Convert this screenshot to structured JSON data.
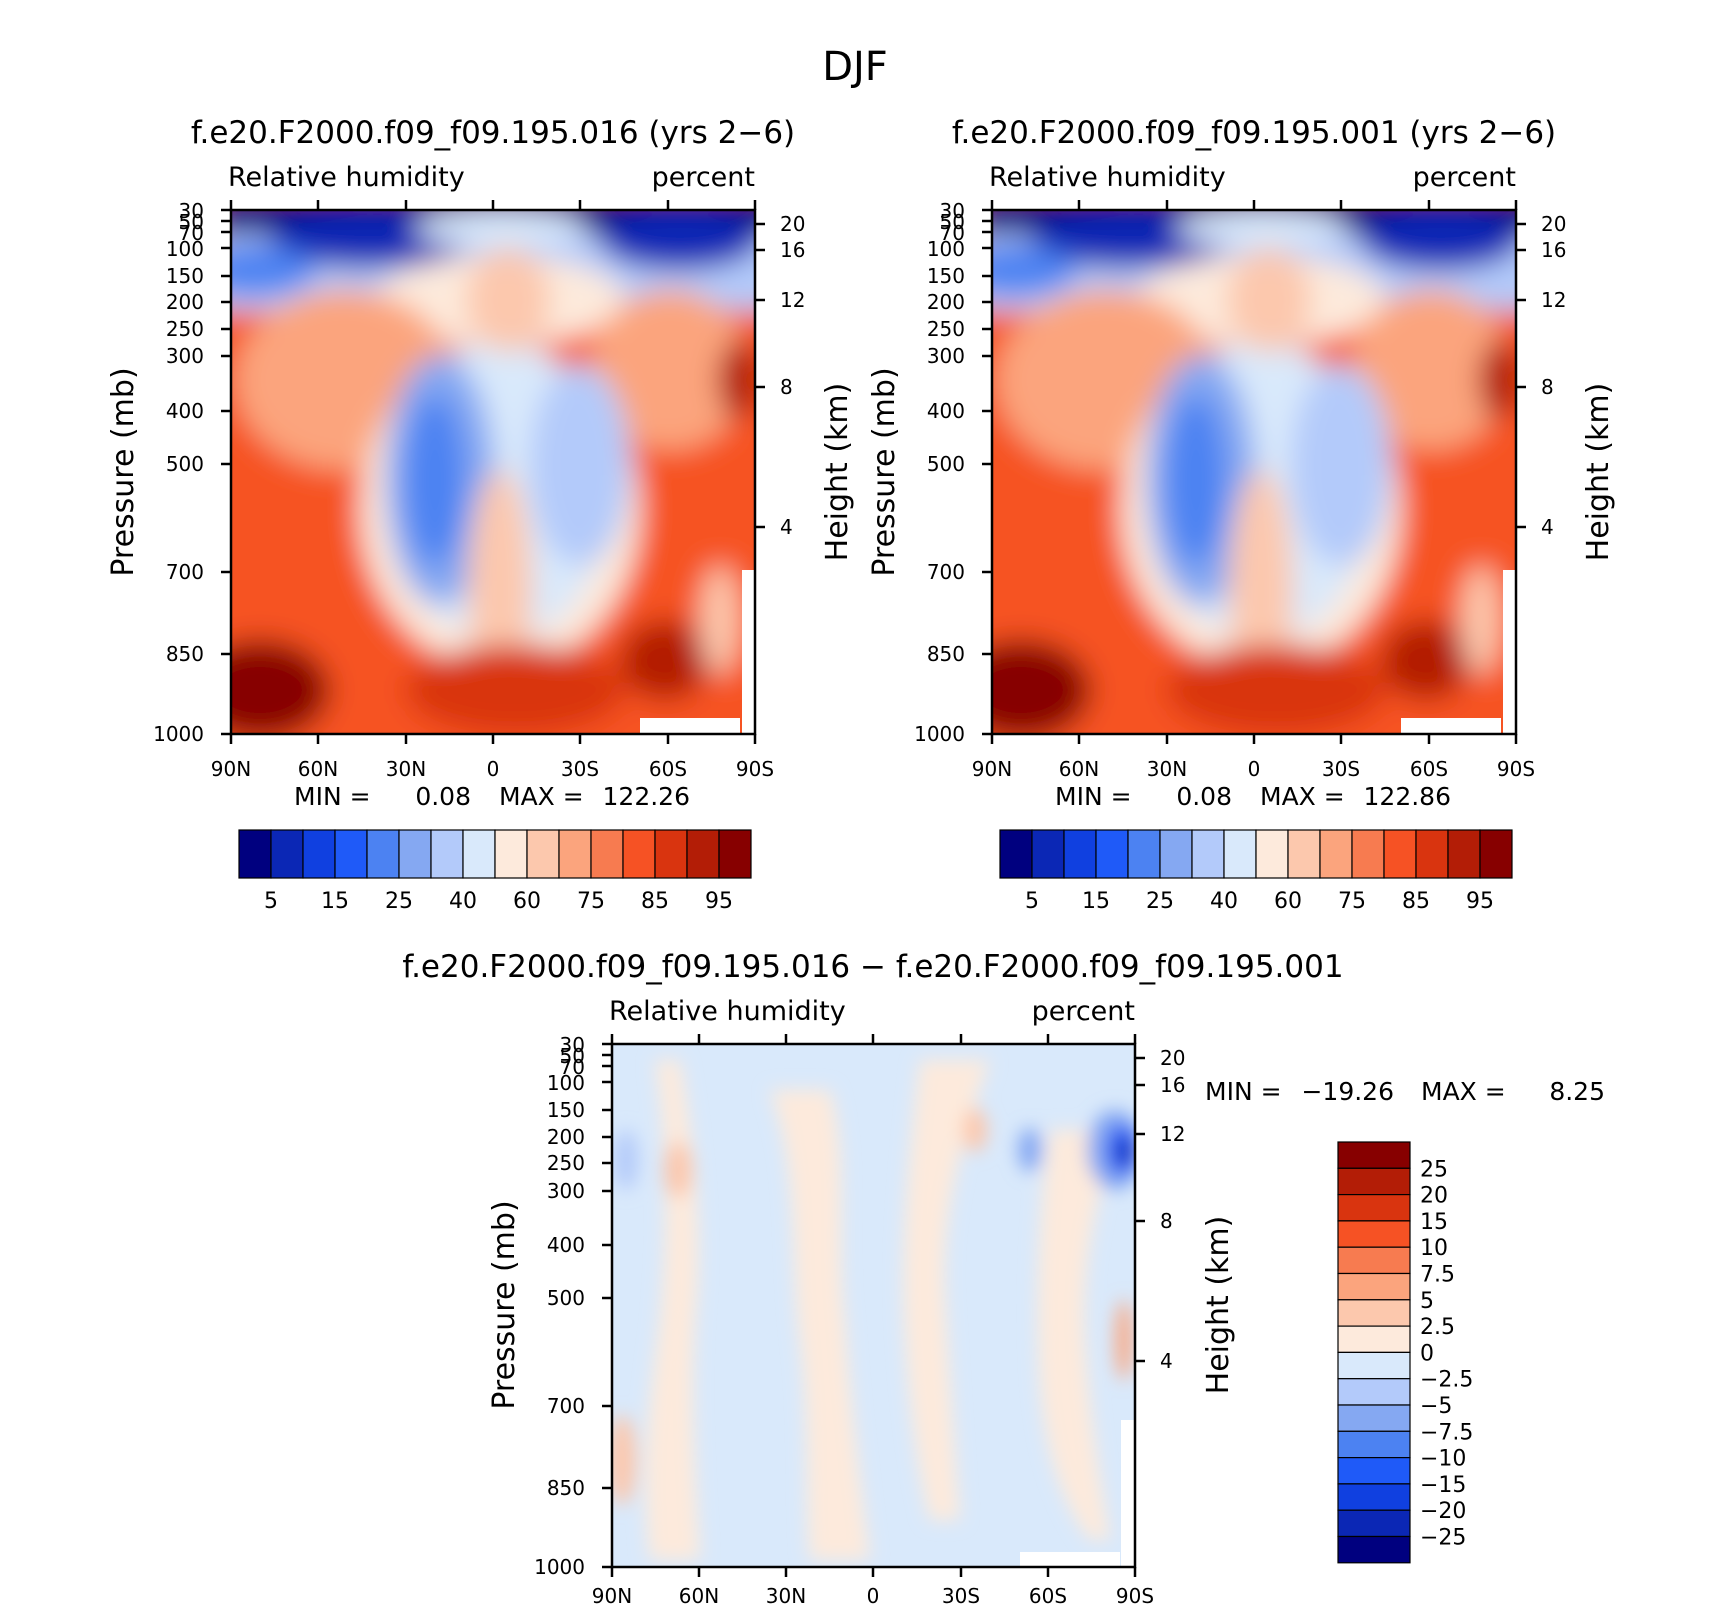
{
  "figure_title": "DJF",
  "panels": [
    {
      "id": "top-left",
      "case_title": "f.e20.F2000.f09_f09.195.016 (yrs 2−6)",
      "left_label": "Relative humidity",
      "right_label": "percent",
      "stats": {
        "min_label": "MIN =",
        "min": "0.08",
        "max_label": "MAX =",
        "max": "122.26"
      }
    },
    {
      "id": "top-right",
      "case_title": "f.e20.F2000.f09_f09.195.001 (yrs 2−6)",
      "left_label": "Relative humidity",
      "right_label": "percent",
      "stats": {
        "min_label": "MIN =",
        "min": "0.08",
        "max_label": "MAX =",
        "max": "122.86"
      }
    },
    {
      "id": "bottom-diff",
      "case_title": "f.e20.F2000.f09_f09.195.016 − f.e20.F2000.f09_f09.195.001",
      "left_label": "Relative humidity",
      "right_label": "percent",
      "stats": {
        "min_label": "MIN =",
        "min": "−19.26",
        "max_label": "MAX =",
        "max": "8.25"
      }
    }
  ],
  "chart_data": [
    {
      "type": "heatmap",
      "title": "f.e20.F2000.f09_f09.195.016 (yrs 2−6)",
      "variable": "Relative humidity",
      "units": "percent",
      "xlabel": "",
      "ylabel": "Pressure (mb)",
      "y2label": "Height (km)",
      "x_ticks": [
        "90N",
        "60N",
        "30N",
        "0",
        "30S",
        "60S",
        "90S"
      ],
      "y_ticks": [
        "30",
        "50",
        "70",
        "100",
        "150",
        "200",
        "250",
        "300",
        "400",
        "500",
        "700",
        "850",
        "1000"
      ],
      "y2_ticks": [
        "20",
        "16",
        "12",
        "8",
        "4"
      ],
      "y_scale": "log",
      "x_range": [
        90,
        -90
      ],
      "y_range": [
        30,
        1000
      ],
      "colorbar_labels": [
        "5",
        "15",
        "25",
        "40",
        "60",
        "75",
        "85",
        "95"
      ],
      "colors": [
        "#00007f",
        "#0b27b5",
        "#1040e0",
        "#1f5af8",
        "#4c82f2",
        "#85a8f2",
        "#b3cafa",
        "#d9e9fb",
        "#fdeadc",
        "#fcc8ad",
        "#fba47d",
        "#f77b50",
        "#f65224",
        "#d9340f",
        "#b31d06",
        "#870000"
      ],
      "min": 0.08,
      "max": 122.26
    },
    {
      "type": "heatmap",
      "title": "f.e20.F2000.f09_f09.195.001 (yrs 2−6)",
      "variable": "Relative humidity",
      "units": "percent",
      "xlabel": "",
      "ylabel": "Pressure (mb)",
      "y2label": "Height (km)",
      "x_ticks": [
        "90N",
        "60N",
        "30N",
        "0",
        "30S",
        "60S",
        "90S"
      ],
      "y_ticks": [
        "30",
        "50",
        "70",
        "100",
        "150",
        "200",
        "250",
        "300",
        "400",
        "500",
        "700",
        "850",
        "1000"
      ],
      "y2_ticks": [
        "20",
        "16",
        "12",
        "8",
        "4"
      ],
      "y_scale": "log",
      "x_range": [
        90,
        -90
      ],
      "y_range": [
        30,
        1000
      ],
      "colorbar_labels": [
        "5",
        "15",
        "25",
        "40",
        "60",
        "75",
        "85",
        "95"
      ],
      "colors": [
        "#00007f",
        "#0b27b5",
        "#1040e0",
        "#1f5af8",
        "#4c82f2",
        "#85a8f2",
        "#b3cafa",
        "#d9e9fb",
        "#fdeadc",
        "#fcc8ad",
        "#fba47d",
        "#f77b50",
        "#f65224",
        "#d9340f",
        "#b31d06",
        "#870000"
      ],
      "min": 0.08,
      "max": 122.86
    },
    {
      "type": "heatmap",
      "title": "f.e20.F2000.f09_f09.195.016 − f.e20.F2000.f09_f09.195.001",
      "variable": "Relative humidity",
      "units": "percent",
      "xlabel": "",
      "ylabel": "Pressure (mb)",
      "y2label": "Height (km)",
      "x_ticks": [
        "90N",
        "60N",
        "30N",
        "0",
        "30S",
        "60S",
        "90S"
      ],
      "y_ticks": [
        "30",
        "50",
        "70",
        "100",
        "150",
        "200",
        "250",
        "300",
        "400",
        "500",
        "700",
        "850",
        "1000"
      ],
      "y2_ticks": [
        "20",
        "16",
        "12",
        "8",
        "4"
      ],
      "y_scale": "log",
      "x_range": [
        90,
        -90
      ],
      "y_range": [
        30,
        1000
      ],
      "colorbar_labels": [
        "25",
        "20",
        "15",
        "10",
        "7.5",
        "5",
        "2.5",
        "0",
        "−2.5",
        "−5",
        "−7.5",
        "−10",
        "−15",
        "−20",
        "−25"
      ],
      "colors": [
        "#870000",
        "#b31d06",
        "#d9340f",
        "#f65224",
        "#f77b50",
        "#fba47d",
        "#fcc8ad",
        "#fdeadc",
        "#d9e9fb",
        "#b3cafa",
        "#85a8f2",
        "#4c82f2",
        "#1f5af8",
        "#1040e0",
        "#0b27b5",
        "#00007f"
      ],
      "min": -19.26,
      "max": 8.25
    }
  ]
}
